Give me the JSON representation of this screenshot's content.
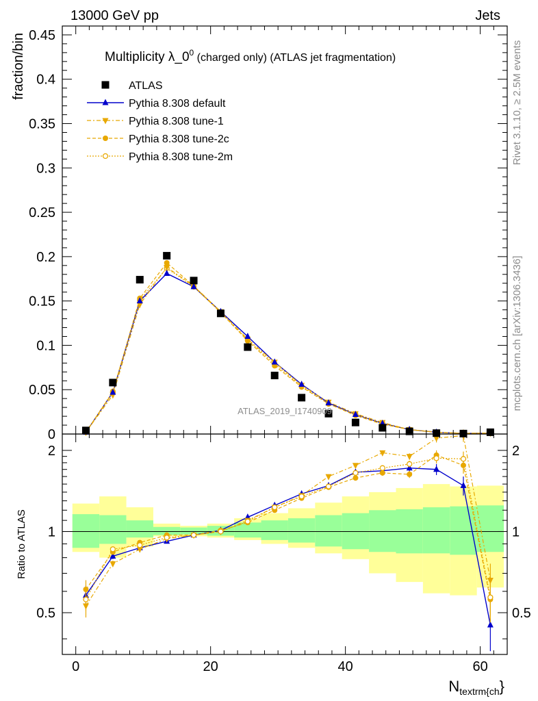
{
  "header": {
    "energy": "13000 GeV pp",
    "process": "Jets"
  },
  "side": {
    "rivet": "Rivet 3.1.10, ≥ 2.5M events",
    "source": "mcplots.cern.ch [arXiv:1306.3436]"
  },
  "watermark": "ATLAS_2019_I1740909",
  "title": {
    "main": "Multiplicity λ_0",
    "sup": "0",
    "rest": " (charged only) (ATLAS jet fragmentation)"
  },
  "colors": {
    "data": "#000000",
    "default": "#0000cc",
    "tune": "#e8a800",
    "band_inner": "#99ff99",
    "band_outer": "#ffff99"
  },
  "chart_data": [
    {
      "type": "scatter",
      "ylabel": "fraction/bin",
      "xlim": [
        -2,
        64
      ],
      "ylim": [
        0,
        0.46
      ],
      "yticks": [
        "0",
        "0.05",
        "0.1",
        "0.15",
        "0.2",
        "0.25",
        "0.3",
        "0.35",
        "0.4",
        "0.45"
      ],
      "legend_position": "top-left",
      "x": [
        1.5,
        5.5,
        9.5,
        13.5,
        17.5,
        21.5,
        25.5,
        29.5,
        33.5,
        37.5,
        41.5,
        45.5,
        49.5,
        53.5,
        57.5,
        61.5
      ],
      "series": [
        {
          "name": "ATLAS",
          "key": "data",
          "marker": "square",
          "values": [
            0.004,
            0.058,
            0.174,
            0.201,
            0.173,
            0.136,
            0.098,
            0.066,
            0.041,
            0.023,
            0.013,
            0.007,
            0.003,
            0.001,
            0.0005,
            0.002
          ]
        },
        {
          "name": "Pythia 8.308 default",
          "key": "default",
          "marker": "triangle-up",
          "dash": "",
          "values": [
            0.002,
            0.047,
            0.15,
            0.181,
            0.166,
            0.138,
            0.11,
            0.081,
            0.056,
            0.035,
            0.022,
            0.012,
            0.005,
            0.002,
            0.0007,
            0.0009
          ]
        },
        {
          "name": "Pythia 8.308 tune-1",
          "key": "tune1",
          "marker": "triangle-down",
          "dash": "6,3,2,3",
          "values": [
            0.002,
            0.044,
            0.146,
            0.188,
            0.167,
            0.138,
            0.107,
            0.081,
            0.055,
            0.036,
            0.023,
            0.013,
            0.005,
            0.002,
            0.0008,
            0.001
          ]
        },
        {
          "name": "Pythia 8.308 tune-2c",
          "key": "tune2c",
          "marker": "circle",
          "dash": "5,3",
          "values": [
            0.002,
            0.047,
            0.153,
            0.193,
            0.167,
            0.137,
            0.105,
            0.077,
            0.053,
            0.034,
            0.021,
            0.011,
            0.005,
            0.002,
            0.0007,
            0.001
          ]
        },
        {
          "name": "Pythia 8.308 tune-2m",
          "key": "tune2m",
          "marker": "circle-open",
          "dash": "2,2",
          "values": [
            0.002,
            0.048,
            0.151,
            0.187,
            0.166,
            0.137,
            0.106,
            0.079,
            0.054,
            0.034,
            0.022,
            0.012,
            0.005,
            0.002,
            0.0007,
            0.001
          ]
        }
      ]
    },
    {
      "type": "line",
      "xlabel": "N",
      "xlabel_sub": "textrm{ch",
      "xlabel_end": "}",
      "ylabel": "Ratio to ATLAS",
      "xlim": [
        -2,
        64
      ],
      "ylim": [
        0.35,
        2.3
      ],
      "xticks": [
        "0",
        "20",
        "40",
        "60"
      ],
      "yticks": [
        "0.5",
        "1",
        "2"
      ],
      "x": [
        1.5,
        5.5,
        9.5,
        13.5,
        17.5,
        21.5,
        25.5,
        29.5,
        33.5,
        37.5,
        41.5,
        45.5,
        49.5,
        53.5,
        57.5,
        61.5
      ],
      "bins": [
        [
          -0.5,
          3.5
        ],
        [
          3.5,
          7.5
        ],
        [
          7.5,
          11.5
        ],
        [
          11.5,
          15.5
        ],
        [
          15.5,
          19.5
        ],
        [
          19.5,
          23.5
        ],
        [
          23.5,
          27.5
        ],
        [
          27.5,
          31.5
        ],
        [
          31.5,
          35.5
        ],
        [
          35.5,
          39.5
        ],
        [
          39.5,
          43.5
        ],
        [
          43.5,
          47.5
        ],
        [
          47.5,
          51.5
        ],
        [
          51.5,
          55.5
        ],
        [
          55.5,
          59.5
        ],
        [
          59.5,
          63.5
        ]
      ],
      "band_inner": [
        [
          0.87,
          1.16
        ],
        [
          0.9,
          1.15
        ],
        [
          0.95,
          1.1
        ],
        [
          0.97,
          1.04
        ],
        [
          0.975,
          1.035
        ],
        [
          0.965,
          1.05
        ],
        [
          0.95,
          1.08
        ],
        [
          0.93,
          1.1
        ],
        [
          0.91,
          1.12
        ],
        [
          0.88,
          1.15
        ],
        [
          0.86,
          1.17
        ],
        [
          0.84,
          1.2
        ],
        [
          0.83,
          1.21
        ],
        [
          0.83,
          1.23
        ],
        [
          0.82,
          1.24
        ],
        [
          0.84,
          1.25
        ]
      ],
      "band_outer": [
        [
          0.84,
          1.27
        ],
        [
          0.8,
          1.35
        ],
        [
          0.88,
          1.23
        ],
        [
          0.96,
          1.07
        ],
        [
          0.96,
          1.05
        ],
        [
          0.95,
          1.07
        ],
        [
          0.93,
          1.12
        ],
        [
          0.9,
          1.17
        ],
        [
          0.87,
          1.22
        ],
        [
          0.83,
          1.28
        ],
        [
          0.79,
          1.35
        ],
        [
          0.7,
          1.4
        ],
        [
          0.65,
          1.45
        ],
        [
          0.59,
          1.5
        ],
        [
          0.58,
          1.47
        ],
        [
          0.62,
          1.48
        ]
      ],
      "series": [
        {
          "name": "Pythia 8.308 default",
          "key": "default",
          "marker": "triangle-up",
          "dash": "",
          "values": [
            0.58,
            0.81,
            0.87,
            0.92,
            0.97,
            1.01,
            1.13,
            1.25,
            1.38,
            1.48,
            1.66,
            1.68,
            1.72,
            1.7,
            1.48,
            0.45
          ],
          "err": [
            0.05,
            0.02,
            0.01,
            0.01,
            0.01,
            0.01,
            0.01,
            0.02,
            0.02,
            0.03,
            0.03,
            0.04,
            0.05,
            0.08,
            0.12,
            0.1
          ]
        },
        {
          "name": "Pythia 8.308 tune-1",
          "key": "tune1",
          "marker": "triangle-down",
          "dash": "6,3,2,3",
          "values": [
            0.53,
            0.76,
            0.86,
            0.94,
            0.97,
            1.0,
            1.1,
            1.23,
            1.36,
            1.6,
            1.76,
            1.96,
            1.9,
            2.22,
            2.27,
            0.66
          ],
          "err": [
            0.05,
            0.02,
            0.01,
            0.01,
            0.01,
            0.01,
            0.01,
            0.02,
            0.02,
            0.03,
            0.03,
            0.04,
            0.05,
            0.08,
            0.12,
            0.1
          ]
        },
        {
          "name": "Pythia 8.308 tune-2c",
          "key": "tune2c",
          "marker": "circle",
          "dash": "5,3",
          "values": [
            0.61,
            0.84,
            0.91,
            0.97,
            0.97,
            1.01,
            1.08,
            1.2,
            1.33,
            1.46,
            1.58,
            1.65,
            1.63,
            1.92,
            1.76,
            0.56
          ],
          "err": [
            0.05,
            0.02,
            0.01,
            0.01,
            0.01,
            0.01,
            0.01,
            0.02,
            0.02,
            0.03,
            0.03,
            0.04,
            0.05,
            0.08,
            0.12,
            0.1
          ]
        },
        {
          "name": "Pythia 8.308 tune-2m",
          "key": "tune2m",
          "marker": "circle-open",
          "dash": "2,2",
          "values": [
            0.56,
            0.86,
            0.89,
            0.95,
            0.97,
            1.0,
            1.09,
            1.23,
            1.35,
            1.47,
            1.65,
            1.72,
            1.78,
            1.87,
            1.86,
            0.57
          ],
          "err": [
            0.05,
            0.02,
            0.01,
            0.01,
            0.01,
            0.01,
            0.01,
            0.02,
            0.02,
            0.03,
            0.03,
            0.04,
            0.05,
            0.08,
            0.12,
            0.1
          ]
        }
      ]
    }
  ]
}
